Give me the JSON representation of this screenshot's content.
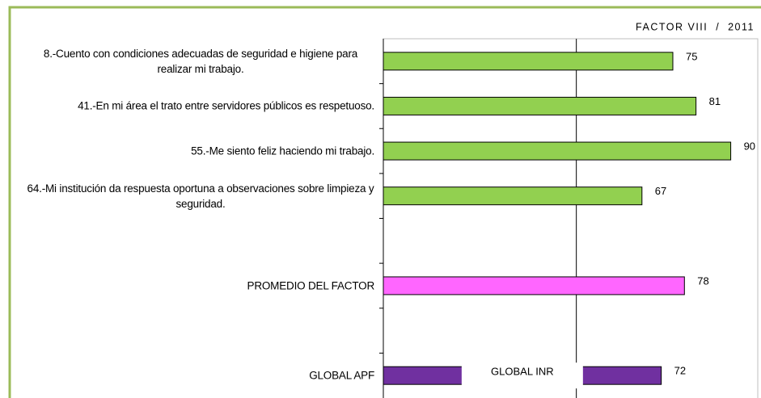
{
  "chart_data": {
    "type": "hbar",
    "title": "FACTOR VIII  /  2011",
    "categories": [
      "8.-Cuento con condiciones adecuadas de seguridad e higiene para realizar mi trabajo.",
      "41.-En mi área el trato entre servidores públicos es respetuoso.",
      "55.-Me siento feliz haciendo mi trabajo.",
      "64.-Mi institución da respuesta oportuna a observaciones sobre limpieza y seguridad.",
      null,
      "PROMEDIO DEL FACTOR",
      null,
      "GLOBAL APF"
    ],
    "values": [
      75,
      81,
      90,
      67,
      null,
      78,
      null,
      72
    ],
    "colors": [
      "#92d050",
      "#92d050",
      "#92d050",
      "#92d050",
      null,
      "#ff66ff",
      null,
      "#7030a0"
    ],
    "annotation": "GLOBAL INR",
    "xlim": [
      0,
      97
    ],
    "reference_line": 50
  }
}
